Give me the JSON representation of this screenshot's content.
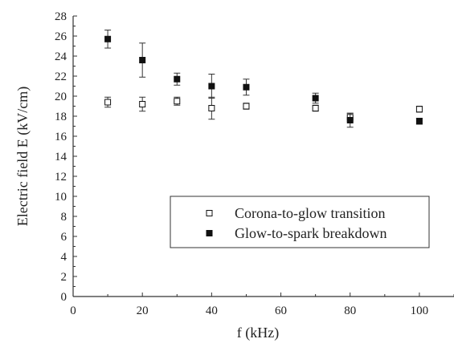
{
  "chart_data": {
    "type": "scatter",
    "title": "",
    "xlabel": "f (kHz)",
    "ylabel": "Electric field E (kV/cm)",
    "xlim": [
      0,
      110
    ],
    "ylim": [
      0,
      28
    ],
    "xticks": [
      0,
      20,
      40,
      60,
      80,
      100
    ],
    "yticks": [
      0,
      2,
      4,
      6,
      8,
      10,
      12,
      14,
      16,
      18,
      20,
      22,
      24,
      26,
      28
    ],
    "grid": false,
    "legend_position": "lower-right",
    "series": [
      {
        "name": "Corona-to-glow transition",
        "marker": "open-square",
        "points": [
          {
            "x": 10,
            "y": 19.4,
            "err": 0.5
          },
          {
            "x": 20,
            "y": 19.2,
            "err": 0.7
          },
          {
            "x": 30,
            "y": 19.5,
            "err": 0.4
          },
          {
            "x": 40,
            "y": 18.8,
            "err": 1.1
          },
          {
            "x": 50,
            "y": 19.0,
            "err": 0.3
          },
          {
            "x": 70,
            "y": 18.8,
            "err": 0.3
          },
          {
            "x": 80,
            "y": 17.9,
            "err": 0.4
          },
          {
            "x": 100,
            "y": 18.7,
            "err": 0.3
          }
        ]
      },
      {
        "name": "Glow-to-spark breakdown",
        "marker": "filled-square",
        "points": [
          {
            "x": 10,
            "y": 25.7,
            "err": 0.9
          },
          {
            "x": 20,
            "y": 23.6,
            "err": 1.7
          },
          {
            "x": 30,
            "y": 21.7,
            "err": 0.6
          },
          {
            "x": 40,
            "y": 21.0,
            "err": 1.2
          },
          {
            "x": 50,
            "y": 20.9,
            "err": 0.8
          },
          {
            "x": 70,
            "y": 19.8,
            "err": 0.5
          },
          {
            "x": 80,
            "y": 17.6,
            "err": 0.7
          },
          {
            "x": 100,
            "y": 17.5,
            "err": 0.3
          }
        ]
      }
    ]
  }
}
